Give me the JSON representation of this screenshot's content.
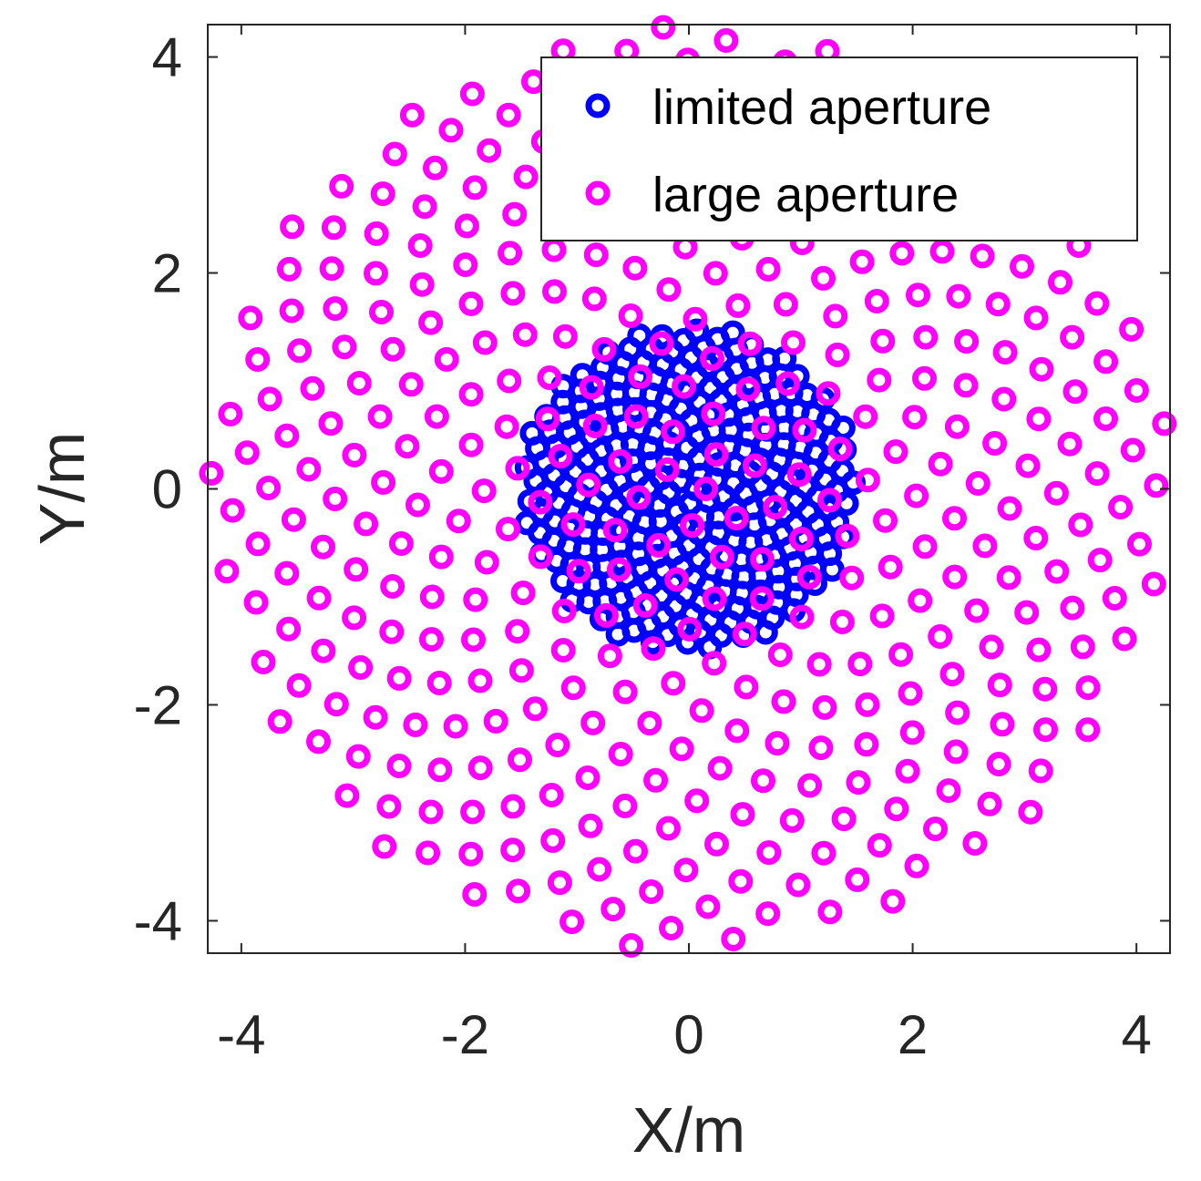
{
  "chart_data": {
    "type": "scatter",
    "title": "",
    "xlabel": "X/m",
    "ylabel": "Y/m",
    "xlim": [
      -4.3,
      4.3
    ],
    "ylim": [
      -4.3,
      4.3
    ],
    "xticks": [
      -4,
      -2,
      0,
      2,
      4
    ],
    "yticks": [
      -4,
      -2,
      0,
      2,
      4
    ],
    "xtick_labels": [
      "-4",
      "-2",
      "0",
      "2",
      "4"
    ],
    "ytick_labels": [
      "-4",
      "-2",
      "0",
      "2",
      "4"
    ],
    "grid": false,
    "legend_position": "top-right",
    "marker": "open-circle",
    "series": [
      {
        "name": "limited aperture",
        "color": "#0000ff",
        "pattern": "sunflower",
        "count": 300,
        "max_radius": 1.5,
        "center": [
          0,
          0
        ]
      },
      {
        "name": "large aperture",
        "color": "#ff00ff",
        "pattern": "sunflower",
        "count": 400,
        "max_radius": 4.3,
        "center": [
          0,
          0
        ]
      }
    ]
  }
}
